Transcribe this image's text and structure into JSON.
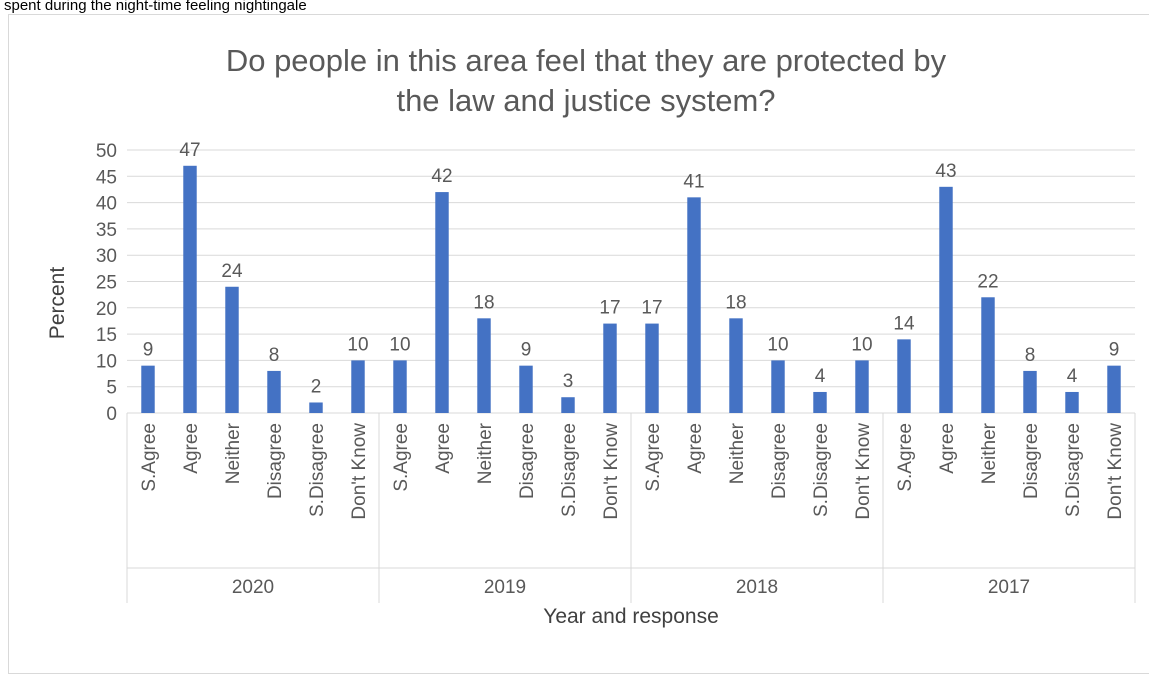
{
  "page": {
    "top_text": "spent during the night-time feeling nightingale"
  },
  "colors": {
    "bar": "#4472c4",
    "grid": "#d9d9d9",
    "text": "#595959",
    "axis_label": "#404040"
  },
  "chart_data": {
    "type": "bar",
    "title_lines": [
      "Do people in this area feel that they are protected by",
      "the law and justice system?"
    ],
    "xlabel": "Year and response",
    "ylabel": "Percent",
    "ylim": [
      0,
      50
    ],
    "yticks": [
      0,
      5,
      10,
      15,
      20,
      25,
      30,
      35,
      40,
      45,
      50
    ],
    "grid": true,
    "legend": "none",
    "groups": [
      {
        "year": "2020",
        "categories": [
          "S.Agree",
          "Agree",
          "Neither",
          "Disagree",
          "S.Disagree",
          "Don't Know"
        ],
        "values": [
          9,
          47,
          24,
          8,
          2,
          10
        ]
      },
      {
        "year": "2019",
        "categories": [
          "S.Agree",
          "Agree",
          "Neither",
          "Disagree",
          "S.Disagree",
          "Don't Know"
        ],
        "values": [
          10,
          42,
          18,
          9,
          3,
          17
        ]
      },
      {
        "year": "2018",
        "categories": [
          "S.Agree",
          "Agree",
          "Neither",
          "Disagree",
          "S.Disagree",
          "Don't Know"
        ],
        "values": [
          17,
          41,
          18,
          10,
          4,
          10
        ]
      },
      {
        "year": "2017",
        "categories": [
          "S.Agree",
          "Agree",
          "Neither",
          "Disagree",
          "S.Disagree",
          "Don't Know"
        ],
        "values": [
          14,
          43,
          22,
          8,
          4,
          9
        ]
      }
    ]
  }
}
